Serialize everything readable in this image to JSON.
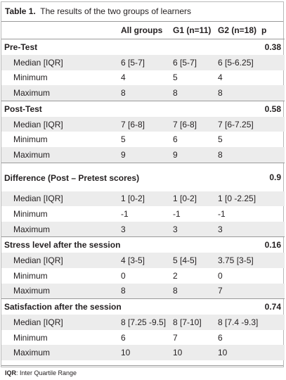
{
  "caption": {
    "label": "Table 1.",
    "text": "The results of the two groups of learners"
  },
  "headers": [
    "",
    "All groups",
    "G1 (n=11)",
    "G2 (n=18)",
    "p"
  ],
  "groups": [
    {
      "title": "Pre-Test",
      "p": "0.38",
      "rows": [
        {
          "label": "Median [IQR]",
          "all": "6 [5-7]",
          "g1": "6 [5-7]",
          "g2": "6 [5-6.25]"
        },
        {
          "label": "Minimum",
          "all": "4",
          "g1": "5",
          "g2": "4"
        },
        {
          "label": "Maximum",
          "all": "8",
          "g1": "8",
          "g2": "8"
        }
      ]
    },
    {
      "title": "Post-Test",
      "p": "0.58",
      "rows": [
        {
          "label": "Median [IQR]",
          "all": "7 [6-8]",
          "g1": "7 [6-8]",
          "g2": "7 [6-7.25]"
        },
        {
          "label": "Minimum",
          "all": "5",
          "g1": "6",
          "g2": "5"
        },
        {
          "label": "Maximum",
          "all": "9",
          "g1": "9",
          "g2": "8"
        }
      ]
    },
    {
      "title": "Difference (Post – Pretest scores)",
      "p": "0.9",
      "rows": [
        {
          "label": "Median [IQR]",
          "all": "1 [0-2]",
          "g1": "1 [0-2]",
          "g2": "1 [0 -2.25]"
        },
        {
          "label": "Minimum",
          "all": "-1",
          "g1": "-1",
          "g2": "-1"
        },
        {
          "label": "Maximum",
          "all": "3",
          "g1": "3",
          "g2": "3"
        }
      ]
    },
    {
      "title": "Stress level after the session",
      "p": "0.16",
      "rows": [
        {
          "label": "Median [IQR]",
          "all": "4 [3-5]",
          "g1": "5 [4-5]",
          "g2": "3.75 [3-5]"
        },
        {
          "label": "Minimum",
          "all": "0",
          "g1": "2",
          "g2": "0"
        },
        {
          "label": "Maximum",
          "all": "8",
          "g1": "8",
          "g2": "7"
        }
      ]
    },
    {
      "title": "Satisfaction after the session",
      "p": "0.74",
      "rows": [
        {
          "label": "Median [IQR]",
          "all": "8 [7.25 -9.5]",
          "g1": "8 [7-10]",
          "g2": "8 [7.4 -9.3]"
        },
        {
          "label": "Minimum",
          "all": "6",
          "g1": "7",
          "g2": "6"
        },
        {
          "label": "Maximum",
          "all": "10",
          "g1": "10",
          "g2": "10"
        }
      ]
    }
  ],
  "footer": {
    "abbr": "IQR",
    "text": ": Inter Quartile Range"
  }
}
